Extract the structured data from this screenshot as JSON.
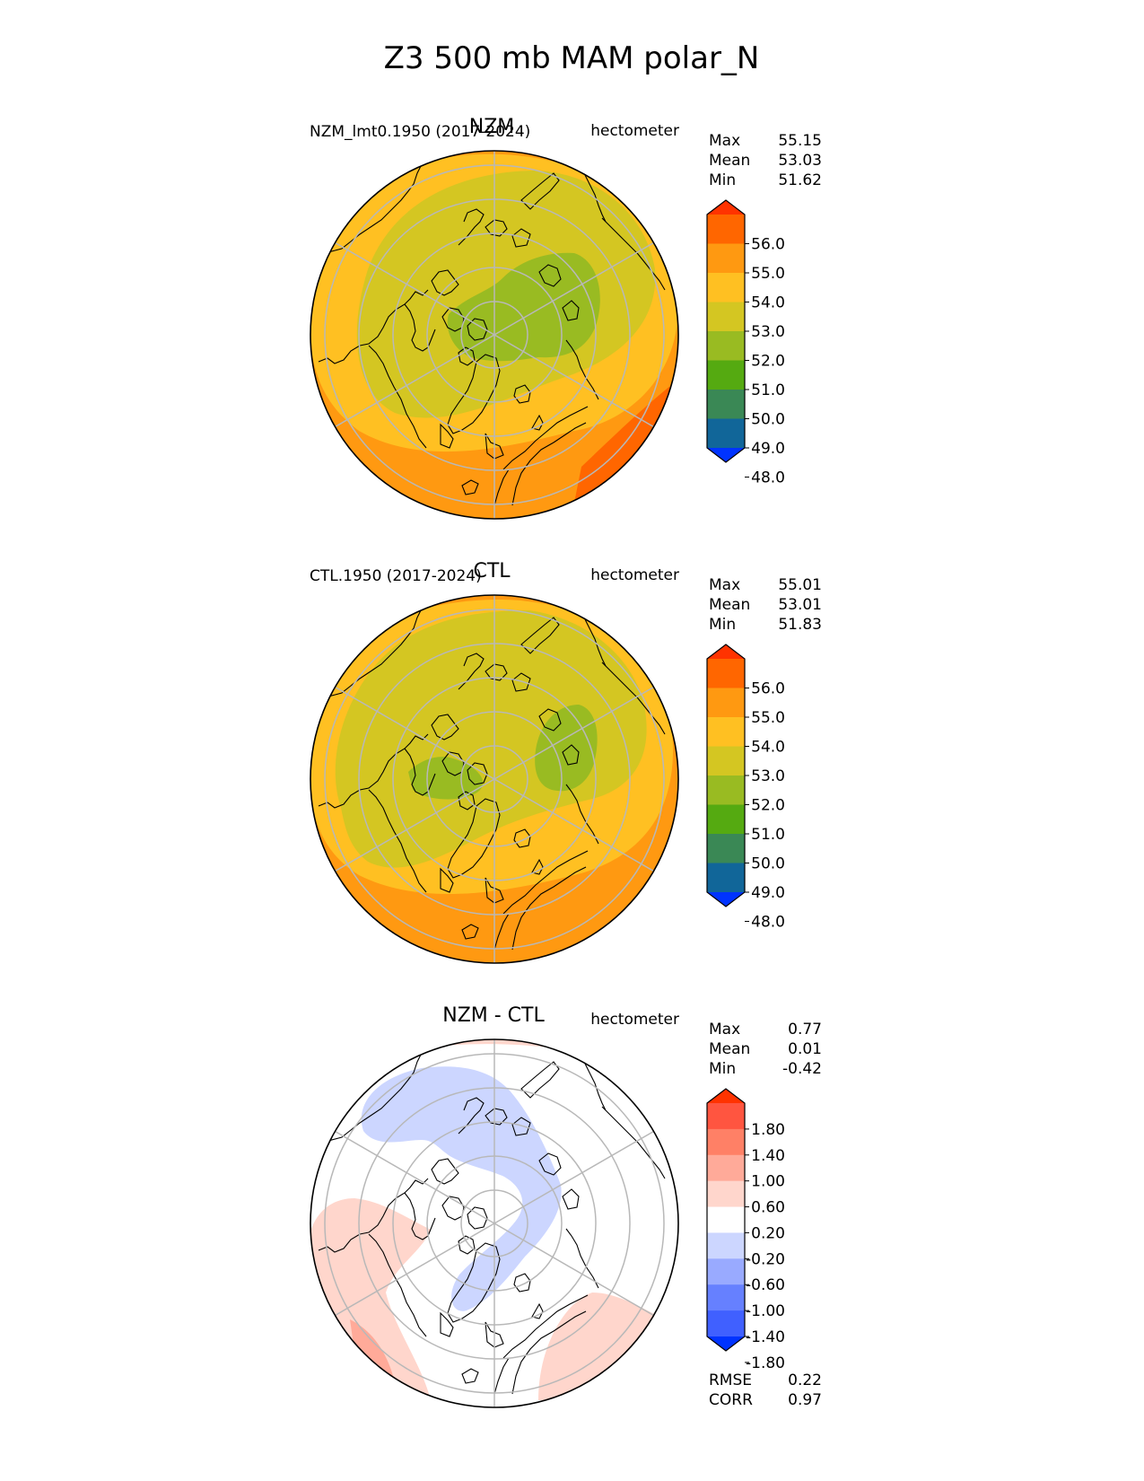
{
  "figure": {
    "title": "Z3 500 mb MAM polar_N"
  },
  "chart_data": [
    {
      "type": "heatmap",
      "projection": "north-polar-stereographic",
      "title": "NZM",
      "case_label": "NZM_lmt0.1950 (2017-2024)",
      "units": "hectometer",
      "stats": {
        "max_label": "Max",
        "max": "55.15",
        "mean_label": "Mean",
        "mean": "53.03",
        "min_label": "Min",
        "min": "51.62"
      },
      "colorbar": {
        "tick_labels": [
          "56.0",
          "55.0",
          "54.0",
          "53.0",
          "52.0",
          "51.0",
          "50.0",
          "49.0",
          "48.0"
        ],
        "colors": [
          "#ff3300",
          "#ff6600",
          "#ff9911",
          "#ffc022",
          "#d4c622",
          "#99bb22",
          "#55aa11",
          "#3a8855",
          "#116699",
          "#0033ff"
        ],
        "extend": "both"
      },
      "field_colors": {
        "land_outline": "#000000",
        "grid": "#bbbbbb"
      }
    },
    {
      "type": "heatmap",
      "projection": "north-polar-stereographic",
      "title": "CTL",
      "case_label": "CTL.1950 (2017-2024)",
      "units": "hectometer",
      "stats": {
        "max_label": "Max",
        "max": "55.01",
        "mean_label": "Mean",
        "mean": "53.01",
        "min_label": "Min",
        "min": "51.83"
      },
      "colorbar": {
        "tick_labels": [
          "56.0",
          "55.0",
          "54.0",
          "53.0",
          "52.0",
          "51.0",
          "50.0",
          "49.0",
          "48.0"
        ],
        "colors": [
          "#ff3300",
          "#ff6600",
          "#ff9911",
          "#ffc022",
          "#d4c622",
          "#99bb22",
          "#55aa11",
          "#3a8855",
          "#116699",
          "#0033ff"
        ],
        "extend": "both"
      }
    },
    {
      "type": "heatmap",
      "projection": "north-polar-stereographic",
      "title": "NZM - CTL",
      "units": "hectometer",
      "stats": {
        "max_label": "Max",
        "max": "0.77",
        "mean_label": "Mean",
        "mean": "0.01",
        "min_label": "Min",
        "min": "-0.42"
      },
      "colorbar": {
        "tick_labels": [
          "1.80",
          "1.40",
          "1.00",
          "0.60",
          "0.20",
          "-0.20",
          "-0.60",
          "-1.00",
          "-1.40",
          "-1.80"
        ],
        "colors": [
          "#ff3300",
          "#ff5540",
          "#ff8066",
          "#ffaa99",
          "#ffd6cc",
          "#ffffff",
          "#ccd6ff",
          "#99aaff",
          "#6680ff",
          "#4060ff",
          "#0033ff"
        ],
        "extend": "both"
      },
      "scores": {
        "rmse_label": "RMSE",
        "rmse": "0.22",
        "corr_label": "CORR",
        "corr": "0.97"
      }
    }
  ]
}
